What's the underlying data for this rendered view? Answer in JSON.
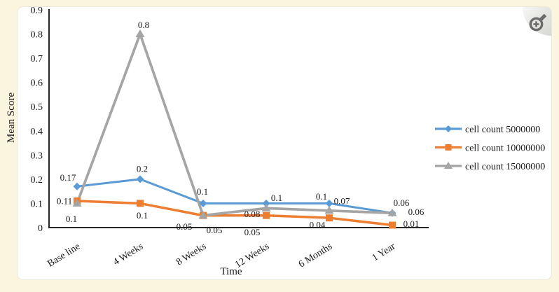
{
  "page": {
    "background_color": "#fbf4df",
    "card_color": "#ffffff"
  },
  "figure_toolbar": {
    "zoom_button": "zoom-image"
  },
  "chart_data": {
    "type": "line",
    "title": "",
    "xlabel": "Time",
    "ylabel": "Mean Score",
    "categories": [
      "Base line",
      "4 Weeks",
      "8 Weeks",
      "12 Weeks",
      "6 Months",
      "1 Year"
    ],
    "ylim": [
      0,
      0.9
    ],
    "y_tick_step": 0.1,
    "y_tick_labels": [
      "0",
      "0.1",
      "0.2",
      "0.3",
      "0.4",
      "0.5",
      "0.6",
      "0.7",
      "0.8",
      "0.9"
    ],
    "grid": false,
    "legend_position": "right",
    "axis_color": "#262626",
    "text_color": "#1a1a1a",
    "series": [
      {
        "name": "cell count 5000000",
        "color": "#5B9BD5",
        "marker": "diamond",
        "values": [
          0.17,
          0.2,
          0.1,
          0.1,
          0.1,
          0.06
        ],
        "labels": [
          "0.17",
          "0.2",
          "0.1",
          "0.1",
          "0.1",
          "0.06"
        ]
      },
      {
        "name": "cell count 10000000",
        "color": "#ED7D31",
        "marker": "square",
        "values": [
          0.11,
          0.1,
          0.05,
          0.05,
          0.04,
          0.01
        ],
        "labels": [
          "0.11",
          "0.1",
          "0.05",
          "0.05",
          "0.04",
          "0.01"
        ]
      },
      {
        "name": "cell count 15000000",
        "color": "#A5A5A5",
        "marker": "triangle",
        "values": [
          0.1,
          0.8,
          0.05,
          0.08,
          0.07,
          0.06
        ],
        "labels": [
          "0.1",
          "0.8",
          "0.05",
          "0.08",
          "0.07",
          "0.06"
        ]
      }
    ]
  }
}
